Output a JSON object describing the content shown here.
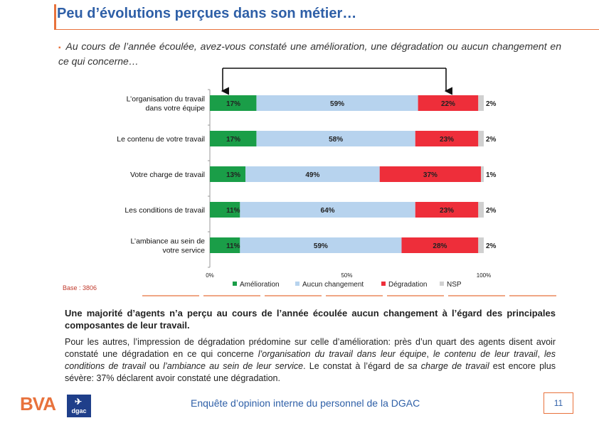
{
  "page": {
    "title": "Peu d’évolutions perçues dans son métier…",
    "question": "Au cours de l’année écoulée, avez-vous constaté une amélioration, une dégradation ou aucun changement en ce qui concerne…",
    "base": "Base : 3806",
    "conclusion": "Une majorité d’agents n’a perçu au cours de l’année écoulée aucun changement à l’égard des principales composantes de leur travail.",
    "detail": {
      "p1": "Pour les autres, l’impression de dégradation prédomine sur celle d’amélioration: près d’un quart des agents disent avoir constaté une dégradation en ce qui concerne ",
      "i1": "l’organisation du travail dans leur équipe",
      "p2": ", ",
      "i2": "le contenu de leur travail",
      "p3": ", ",
      "i3": "les conditions de travail",
      "p4": " ou ",
      "i4": "l’ambiance au sein de leur service",
      "p5": ". Le constat à l’égard de ",
      "i5": "sa charge de travail",
      "p6": " est encore plus sévère: 37% déclarent avoir constaté une dégradation."
    },
    "footer": "Enquête d’opinion interne du personnel de la DGAC",
    "page_number": "11",
    "logo_bva": "BVA",
    "logo_dgac": "dgac"
  },
  "colors": {
    "amelioration": "#1a9e48",
    "aucun": "#b7d3ee",
    "degradation": "#ee2e3a",
    "nsp": "#d0d0d0",
    "accent": "#e8723c",
    "title": "#2e5fa7"
  },
  "chart_data": {
    "type": "bar",
    "orientation": "horizontal-stacked-100",
    "categories": [
      [
        "L’organisation du travail",
        "dans votre équipe"
      ],
      [
        "Le contenu de votre travail"
      ],
      [
        "Votre charge de travail"
      ],
      [
        "Les conditions de travail"
      ],
      [
        "L’ambiance au sein de",
        "votre service"
      ]
    ],
    "series": [
      {
        "name": "Amélioration",
        "key": "amelioration",
        "values": [
          17,
          17,
          13,
          11,
          11
        ]
      },
      {
        "name": "Aucun changement",
        "key": "aucun",
        "values": [
          59,
          58,
          49,
          64,
          59
        ]
      },
      {
        "name": "Dégradation",
        "key": "degradation",
        "values": [
          22,
          23,
          37,
          23,
          28
        ]
      },
      {
        "name": "NSP",
        "key": "nsp",
        "values": [
          2,
          2,
          1,
          2,
          2
        ]
      }
    ],
    "labels": [
      [
        "17%",
        "59%",
        "22%",
        "2%"
      ],
      [
        "17%",
        "58%",
        "23%",
        "2%"
      ],
      [
        "13%",
        "49%",
        "37%",
        "1%"
      ],
      [
        "11%",
        "64%",
        "23%",
        "2%"
      ],
      [
        "11%",
        "59%",
        "28%",
        "2%"
      ]
    ],
    "xticks": [
      "0%",
      "50%",
      "100%"
    ],
    "xlim": [
      0,
      100
    ],
    "legend_position": "bottom"
  }
}
